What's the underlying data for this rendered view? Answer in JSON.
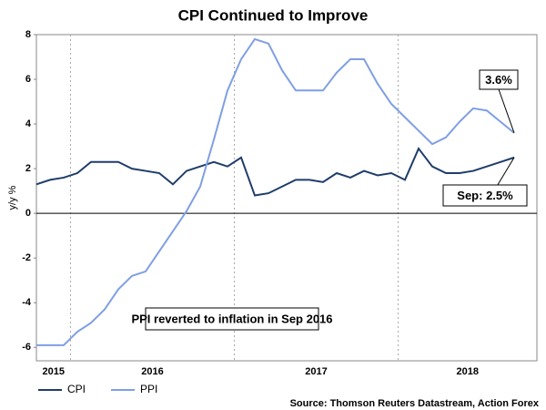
{
  "chart_data": {
    "type": "line",
    "title": "CPI Continued to Improve",
    "y_label": "y/y %",
    "year_labels": [
      "2015",
      "2016",
      "2017",
      "2018"
    ],
    "series": [
      {
        "name": "CPI",
        "color": "#1f3d6b",
        "values": [
          1.3,
          1.5,
          1.6,
          1.8,
          2.3,
          2.3,
          2.3,
          2.0,
          1.9,
          1.8,
          1.3,
          1.9,
          2.1,
          2.3,
          2.1,
          2.5,
          0.8,
          0.9,
          1.2,
          1.5,
          1.5,
          1.4,
          1.8,
          1.6,
          1.9,
          1.7,
          1.8,
          1.5,
          2.9,
          2.1,
          1.8,
          1.8,
          1.9,
          2.1,
          2.3,
          2.5
        ]
      },
      {
        "name": "PPI",
        "color": "#7f9fe3",
        "values": [
          -5.9,
          -5.9,
          -5.9,
          -5.3,
          -4.9,
          -4.3,
          -3.4,
          -2.8,
          -2.6,
          -1.7,
          -0.8,
          0.1,
          1.2,
          3.3,
          5.5,
          6.9,
          7.8,
          7.6,
          6.4,
          5.5,
          5.5,
          5.5,
          6.3,
          6.9,
          6.9,
          5.8,
          4.9,
          4.3,
          3.7,
          3.1,
          3.4,
          4.1,
          4.7,
          4.6,
          4.1,
          3.6
        ]
      }
    ],
    "ylim": [
      -6.6,
      8
    ],
    "yticks": [
      -6,
      -4,
      -2,
      0,
      2,
      4,
      6,
      8
    ],
    "annotations": [
      "3.6%",
      "Sep: 2.5%",
      "PPI reverted to inflation in Sep 2016"
    ],
    "source": "Source: Thomson Reuters Datastream, Action Forex"
  }
}
